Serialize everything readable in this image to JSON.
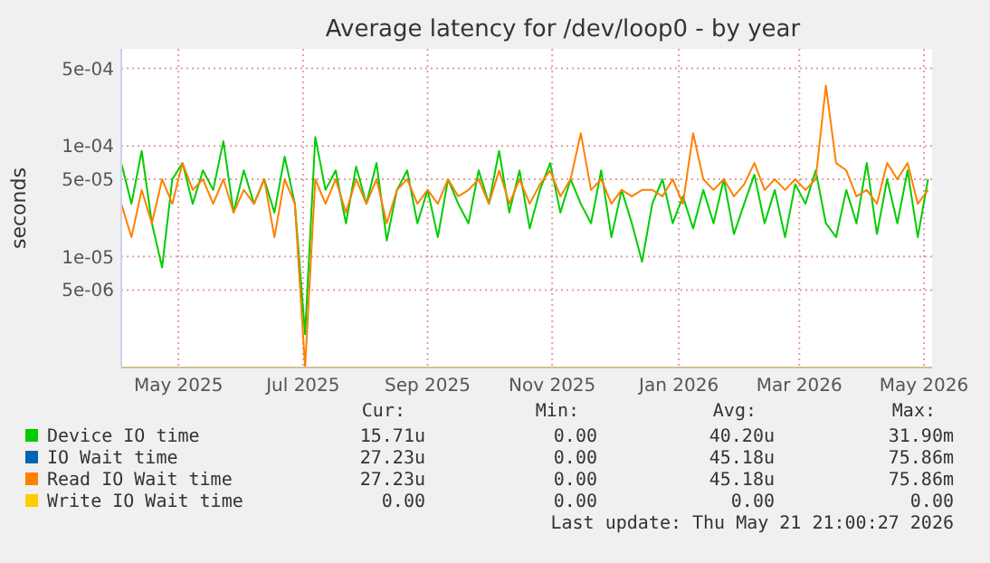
{
  "chart_data": {
    "type": "line",
    "title": "Average latency for /dev/loop0 - by year",
    "ylabel": "seconds",
    "log": true,
    "grid": true,
    "legend": "bottom",
    "line_style": "solid",
    "marker": "none",
    "x": [
      "2025-04-18",
      "2025-04-23",
      "2025-04-28",
      "2025-05-03",
      "2025-05-08",
      "2025-05-13",
      "2025-05-18",
      "2025-05-23",
      "2025-05-28",
      "2025-06-02",
      "2025-06-07",
      "2025-06-12",
      "2025-06-17",
      "2025-06-22",
      "2025-06-27",
      "2025-07-02",
      "2025-07-07",
      "2025-07-12",
      "2025-07-17",
      "2025-07-22",
      "2025-07-27",
      "2025-08-01",
      "2025-08-06",
      "2025-08-11",
      "2025-08-16",
      "2025-08-21",
      "2025-08-26",
      "2025-08-31",
      "2025-09-05",
      "2025-09-10",
      "2025-09-15",
      "2025-09-20",
      "2025-09-25",
      "2025-09-30",
      "2025-10-05",
      "2025-10-10",
      "2025-10-15",
      "2025-10-20",
      "2025-10-25",
      "2025-10-30",
      "2025-11-04",
      "2025-11-09",
      "2025-11-14",
      "2025-11-19",
      "2025-11-24",
      "2025-11-29",
      "2025-12-04",
      "2025-12-09",
      "2025-12-14",
      "2025-12-19",
      "2025-12-24",
      "2025-12-29",
      "2026-01-03",
      "2026-01-08",
      "2026-01-13",
      "2026-01-18",
      "2026-01-23",
      "2026-01-28",
      "2026-02-02",
      "2026-02-07",
      "2026-02-12",
      "2026-02-17",
      "2026-02-22",
      "2026-02-27",
      "2026-03-04",
      "2026-03-09",
      "2026-03-14",
      "2026-03-19",
      "2026-03-24",
      "2026-03-29",
      "2026-04-03",
      "2026-04-08",
      "2026-04-13",
      "2026-04-18",
      "2026-04-23",
      "2026-04-28",
      "2026-05-03",
      "2026-05-08",
      "2026-05-13",
      "2026-05-18"
    ],
    "xlim": [
      "2025-04-18",
      "2026-05-20"
    ],
    "xticks": [
      {
        "value": "2025-05-16",
        "label": "May 2025"
      },
      {
        "value": "2025-07-16",
        "label": "Jul 2025"
      },
      {
        "value": "2025-09-15",
        "label": "Sep 2025"
      },
      {
        "value": "2025-11-15",
        "label": "Nov 2025"
      },
      {
        "value": "2026-01-16",
        "label": "Jan 2026"
      },
      {
        "value": "2026-03-16",
        "label": "Mar 2026"
      },
      {
        "value": "2026-05-16",
        "label": "May 2026"
      }
    ],
    "ylim": [
      1e-06,
      0.00075
    ],
    "yticks": [
      {
        "value": 5e-06,
        "label": "5e-06"
      },
      {
        "value": 1e-05,
        "label": "1e-05"
      },
      {
        "value": 5e-05,
        "label": "5e-05"
      },
      {
        "value": 0.0001,
        "label": "1e-04"
      },
      {
        "value": 0.0005,
        "label": "5e-04"
      }
    ],
    "series": [
      {
        "name": "Device IO time",
        "color": "#00cc00",
        "values": [
          7e-05,
          3e-05,
          9e-05,
          2e-05,
          8e-06,
          5e-05,
          7e-05,
          3e-05,
          6e-05,
          4e-05,
          0.00011,
          2.5e-05,
          6e-05,
          3e-05,
          5e-05,
          2.5e-05,
          8e-05,
          3e-05,
          2e-06,
          0.00012,
          4e-05,
          6e-05,
          2e-05,
          6.5e-05,
          3e-05,
          7e-05,
          1.4e-05,
          4e-05,
          6e-05,
          2e-05,
          4e-05,
          1.5e-05,
          5e-05,
          3e-05,
          2e-05,
          6e-05,
          3e-05,
          9e-05,
          2.5e-05,
          6e-05,
          1.8e-05,
          4e-05,
          7e-05,
          2.5e-05,
          5e-05,
          3e-05,
          2e-05,
          6e-05,
          1.5e-05,
          4e-05,
          2e-05,
          9e-06,
          3e-05,
          5e-05,
          2e-05,
          3.5e-05,
          1.8e-05,
          4e-05,
          2e-05,
          5e-05,
          1.6e-05,
          3e-05,
          5.5e-05,
          2e-05,
          4e-05,
          1.5e-05,
          4.5e-05,
          3e-05,
          6e-05,
          2e-05,
          1.5e-05,
          4e-05,
          2e-05,
          7e-05,
          1.6e-05,
          5e-05,
          2e-05,
          6e-05,
          1.5e-05,
          5e-05
        ]
      },
      {
        "name": "IO Wait time",
        "color": "#0066b3",
        "values": [
          null,
          null,
          null,
          null,
          null,
          null,
          null,
          null,
          null,
          null,
          null,
          null,
          null,
          null,
          null,
          null,
          null,
          null,
          null,
          null,
          null,
          null,
          null,
          null,
          null,
          null,
          null,
          null,
          null,
          null,
          null,
          null,
          null,
          null,
          null,
          null,
          null,
          null,
          null,
          null,
          null,
          null,
          null,
          null,
          null,
          null,
          null,
          null,
          null,
          null,
          null,
          null,
          null,
          null,
          null,
          null,
          null,
          null,
          null,
          null,
          null,
          null,
          null,
          null,
          null,
          null,
          null,
          null,
          null,
          null,
          null,
          null,
          null,
          null,
          null,
          null,
          null,
          null,
          null,
          null
        ]
      },
      {
        "name": "Read IO Wait time",
        "color": "#ff8000",
        "values": [
          3e-05,
          1.5e-05,
          4e-05,
          2e-05,
          5e-05,
          3e-05,
          7e-05,
          4e-05,
          5e-05,
          3e-05,
          5e-05,
          2.5e-05,
          4e-05,
          3e-05,
          5e-05,
          1.5e-05,
          5e-05,
          3e-05,
          1e-06,
          5e-05,
          3e-05,
          5e-05,
          2.5e-05,
          5e-05,
          3e-05,
          5e-05,
          2e-05,
          4e-05,
          5e-05,
          3e-05,
          4e-05,
          3e-05,
          5e-05,
          3.5e-05,
          4e-05,
          5e-05,
          3e-05,
          6e-05,
          3e-05,
          5e-05,
          3e-05,
          4.5e-05,
          6e-05,
          3.5e-05,
          5e-05,
          0.00013,
          4e-05,
          5e-05,
          3e-05,
          4e-05,
          3.5e-05,
          4e-05,
          4e-05,
          3.5e-05,
          5e-05,
          3e-05,
          0.00013,
          5e-05,
          4e-05,
          5e-05,
          3.5e-05,
          4.5e-05,
          7e-05,
          4e-05,
          5e-05,
          4e-05,
          5e-05,
          4e-05,
          5e-05,
          0.00035,
          7e-05,
          6e-05,
          3.5e-05,
          4e-05,
          3e-05,
          7e-05,
          5e-05,
          7e-05,
          3e-05,
          4e-05
        ]
      },
      {
        "name": "Write IO Wait time",
        "color": "#ffcc00",
        "values": [
          null,
          null,
          null,
          null,
          null,
          null,
          null,
          null,
          null,
          null,
          null,
          null,
          null,
          null,
          null,
          null,
          null,
          null,
          null,
          null,
          null,
          null,
          null,
          null,
          null,
          null,
          null,
          null,
          null,
          null,
          null,
          null,
          null,
          null,
          null,
          null,
          null,
          null,
          null,
          null,
          null,
          null,
          null,
          null,
          null,
          null,
          null,
          null,
          null,
          null,
          null,
          null,
          null,
          null,
          null,
          null,
          null,
          null,
          null,
          null,
          null,
          null,
          null,
          null,
          null,
          null,
          null,
          null,
          null,
          null,
          null,
          null,
          null,
          null,
          null,
          null,
          null,
          null,
          null,
          null
        ]
      }
    ],
    "annotations": [
      "Cur:",
      "Min:",
      "Avg:",
      "Max:",
      "15.71u",
      "0.00",
      "40.20u",
      "31.90m",
      "27.23u",
      "0.00",
      "45.18u",
      "75.86m",
      "27.23u",
      "0.00",
      "45.18u",
      "75.86m",
      "0.00",
      "0.00",
      "0.00",
      "0.00",
      "Last update: Thu May 21 21:00:27 2026"
    ]
  }
}
